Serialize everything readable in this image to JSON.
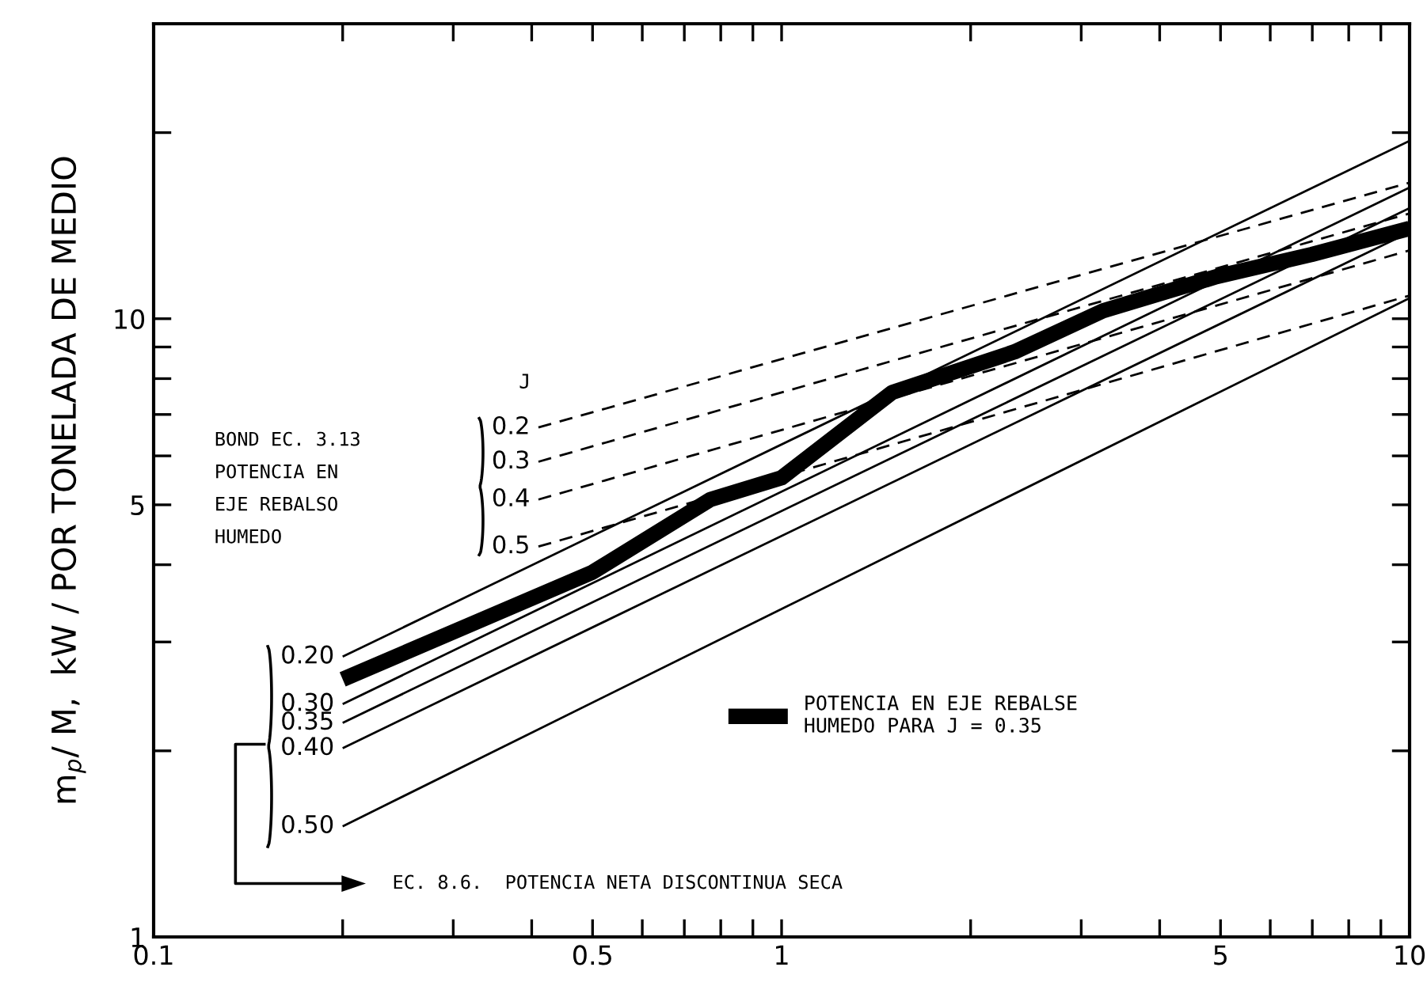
{
  "chart_data": {
    "type": "line",
    "ylabel": "m$_{p}$/ M,  kW / POR TONELADA DE MEDIO",
    "log": "xy",
    "xlim": [
      0.1,
      10
    ],
    "ylim": [
      1,
      30
    ],
    "xticks": [
      {
        "value": 0.1,
        "label": "0.1"
      },
      {
        "value": 0.2,
        "label": null
      },
      {
        "value": 0.3,
        "label": null
      },
      {
        "value": 0.4,
        "label": null
      },
      0.5,
      {
        "value": 0.6,
        "label": null
      },
      {
        "value": 0.7,
        "label": null
      },
      {
        "value": 0.8,
        "label": null
      },
      {
        "value": 0.9,
        "label": null
      },
      1,
      {
        "value": 2,
        "label": null
      },
      {
        "value": 3,
        "label": null
      },
      {
        "value": 4,
        "label": null
      },
      5,
      {
        "value": 6,
        "label": null
      },
      {
        "value": 7,
        "label": null
      },
      {
        "value": 8,
        "label": null
      },
      {
        "value": 9,
        "label": null
      },
      10
    ],
    "yticks": [
      1,
      {
        "value": 2,
        "label": null
      },
      {
        "value": 3,
        "label": null
      },
      {
        "value": 4,
        "label": null
      },
      5,
      {
        "value": 6,
        "label": null
      },
      {
        "value": 7,
        "label": null
      },
      {
        "value": 8,
        "label": null
      },
      {
        "value": 9,
        "label": null
      },
      10,
      {
        "value": 20,
        "label": null
      }
    ],
    "grid": false,
    "legend": "bottom right",
    "series": [
      {
        "name": "0.2",
        "color": "#000000",
        "line_style": "dashed",
        "x": [
          0.41,
          10
        ],
        "values": [
          6.67,
          16.6
        ]
      },
      {
        "name": "0.3",
        "color": "#000000",
        "line_style": "dashed",
        "x": [
          0.41,
          10
        ],
        "values": [
          5.87,
          14.8
        ]
      },
      {
        "name": "0.4",
        "color": "#000000",
        "line_style": "dashed",
        "x": [
          0.41,
          10
        ],
        "values": [
          5.1,
          12.9
        ]
      },
      {
        "name": "0.5",
        "color": "#000000",
        "line_style": "dashed",
        "x": [
          0.41,
          10
        ],
        "values": [
          4.28,
          10.9
        ]
      },
      {
        "name": "0.20",
        "color": "#000000",
        "line_style": "solid",
        "x": [
          0.2,
          10
        ],
        "values": [
          2.84,
          19.4
        ]
      },
      {
        "name": "0.30",
        "color": "#000000",
        "line_style": "solid",
        "x": [
          0.2,
          10
        ],
        "values": [
          2.38,
          16.3
        ]
      },
      {
        "name": "0.35",
        "color": "#000000",
        "line_style": "solid",
        "x": [
          0.2,
          10
        ],
        "values": [
          2.22,
          15.1
        ]
      },
      {
        "name": "0.40",
        "color": "#000000",
        "line_style": "solid",
        "x": [
          0.2,
          10
        ],
        "values": [
          2.02,
          13.8
        ]
      },
      {
        "name": "0.50",
        "color": "#000000",
        "line_style": "solid",
        "x": [
          0.2,
          10
        ],
        "values": [
          1.51,
          10.8
        ]
      },
      {
        "name": "POTENCIA EN EJE REBALSE\nHUMEDO PARA J = 0.35",
        "color": "#000000",
        "line_style": "solid",
        "x": [
          0.2,
          0.5,
          0.77,
          1,
          1.5,
          2.35,
          3.25,
          4.93,
          6.98,
          10
        ],
        "values": [
          2.61,
          3.89,
          5.1,
          5.53,
          7.6,
          8.84,
          10.3,
          11.7,
          12.7,
          14.0
        ]
      }
    ],
    "annotations": [
      "J",
      "BOND EC. 3.13\nPOTENCIA EN\nEJE REBALSO\nHUMEDO",
      "EC. 8.6.  POTENCIA NETA DISCONTINUA SECA"
    ]
  }
}
